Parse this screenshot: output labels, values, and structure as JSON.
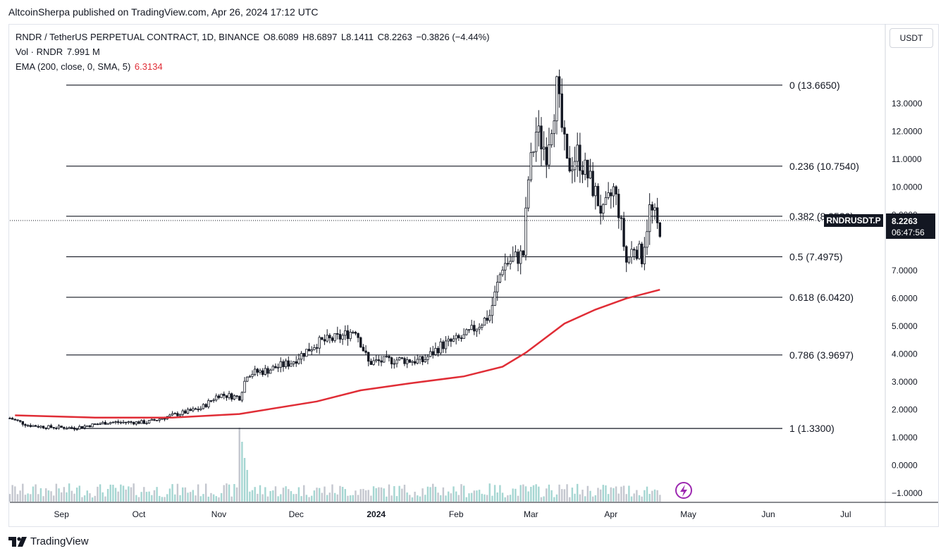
{
  "header": {
    "publisher": "AltcoinSherpa published on TradingView.com, Apr 26, 2024 17:12 UTC"
  },
  "legend": {
    "symbol": "RNDR / TetherUS PERPETUAL CONTRACT, 1D, BINANCE",
    "open": "O8.6089",
    "high": "H8.6897",
    "low": "L8.1411",
    "close": "C8.2263",
    "change": "−0.3826 (−4.44%)",
    "vol_label": "Vol · RNDR",
    "vol_value": "7.991 M",
    "ema_label": "EMA (200, close, 0, SMA, 5)",
    "ema_value": "6.3134"
  },
  "currency_button": "USDT",
  "branding": "TradingView",
  "colors": {
    "up": "#26a69a",
    "down": "#131722",
    "ema": "#e02d36",
    "fib": "#131722",
    "price_tag": "#131722"
  },
  "chart_data": {
    "type": "candlestick",
    "symbol": "RNDRUSDT.P",
    "last_price": "8.2263",
    "countdown": "06:47:56",
    "y_ticks": [
      "13.0000",
      "12.0000",
      "11.0000",
      "10.0000",
      "9.0000",
      "7.0000",
      "6.0000",
      "5.0000",
      "4.0000",
      "3.0000",
      "2.0000",
      "1.0000",
      "0.0000",
      "−1.0000"
    ],
    "x_ticks": [
      "Sep",
      "Oct",
      "Nov",
      "Dec",
      "2024",
      "Feb",
      "Mar",
      "Apr",
      "May",
      "Jun",
      "Jul"
    ],
    "ylim": [
      -1.3,
      14.9
    ],
    "fib_levels": [
      {
        "label": "0 (13.6650)",
        "value": 13.665
      },
      {
        "label": "0.236 (10.7540)",
        "value": 10.754
      },
      {
        "label": "0.382 (8.9530)",
        "value": 8.953
      },
      {
        "label": "0.5 (7.4975)",
        "value": 7.4975
      },
      {
        "label": "0.618 (6.0420)",
        "value": 6.042
      },
      {
        "label": "0.786 (3.9697)",
        "value": 3.9697
      },
      {
        "label": "1 (1.3300)",
        "value": 1.33
      }
    ],
    "price_path": [
      {
        "date": "2023-08-18",
        "close": 1.7
      },
      {
        "date": "2023-08-25",
        "close": 1.45
      },
      {
        "date": "2023-09-01",
        "close": 1.38
      },
      {
        "date": "2023-09-12",
        "close": 1.35
      },
      {
        "date": "2023-09-25",
        "close": 1.55
      },
      {
        "date": "2023-10-10",
        "close": 1.55
      },
      {
        "date": "2023-10-20",
        "close": 1.8
      },
      {
        "date": "2023-10-31",
        "close": 2.05
      },
      {
        "date": "2023-11-07",
        "close": 2.55
      },
      {
        "date": "2023-11-15",
        "close": 2.45
      },
      {
        "date": "2023-11-18",
        "close": 3.3
      },
      {
        "date": "2023-11-25",
        "close": 3.4
      },
      {
        "date": "2023-12-05",
        "close": 3.7
      },
      {
        "date": "2023-12-15",
        "close": 4.4
      },
      {
        "date": "2023-12-24",
        "close": 4.6
      },
      {
        "date": "2023-12-30",
        "close": 4.9
      },
      {
        "date": "2024-01-04",
        "close": 3.7
      },
      {
        "date": "2024-01-15",
        "close": 3.8
      },
      {
        "date": "2024-01-25",
        "close": 3.75
      },
      {
        "date": "2024-02-01",
        "close": 4.3
      },
      {
        "date": "2024-02-10",
        "close": 4.6
      },
      {
        "date": "2024-02-20",
        "close": 5.4
      },
      {
        "date": "2024-02-25",
        "close": 7.2
      },
      {
        "date": "2024-03-04",
        "close": 7.6
      },
      {
        "date": "2024-03-06",
        "close": 10.3
      },
      {
        "date": "2024-03-09",
        "close": 12.0
      },
      {
        "date": "2024-03-13",
        "close": 11.3
      },
      {
        "date": "2024-03-17",
        "close": 13.5
      },
      {
        "date": "2024-03-21",
        "close": 10.7
      },
      {
        "date": "2024-03-25",
        "close": 11.2
      },
      {
        "date": "2024-03-31",
        "close": 10.0
      },
      {
        "date": "2024-04-04",
        "close": 9.0
      },
      {
        "date": "2024-04-08",
        "close": 9.9
      },
      {
        "date": "2024-04-10",
        "close": 9.2
      },
      {
        "date": "2024-04-13",
        "close": 7.3
      },
      {
        "date": "2024-04-16",
        "close": 7.9
      },
      {
        "date": "2024-04-19",
        "close": 7.5
      },
      {
        "date": "2024-04-22",
        "close": 9.2
      },
      {
        "date": "2024-04-24",
        "close": 8.9
      },
      {
        "date": "2024-04-26",
        "close": 8.2263
      }
    ],
    "ema_path": [
      {
        "date": "2023-08-20",
        "value": 1.8
      },
      {
        "date": "2023-09-20",
        "value": 1.72
      },
      {
        "date": "2023-10-20",
        "value": 1.72
      },
      {
        "date": "2023-11-15",
        "value": 1.85
      },
      {
        "date": "2023-12-15",
        "value": 2.3
      },
      {
        "date": "2024-01-01",
        "value": 2.7
      },
      {
        "date": "2024-01-20",
        "value": 2.95
      },
      {
        "date": "2024-02-10",
        "value": 3.2
      },
      {
        "date": "2024-02-25",
        "value": 3.55
      },
      {
        "date": "2024-03-05",
        "value": 4.05
      },
      {
        "date": "2024-03-20",
        "value": 5.1
      },
      {
        "date": "2024-04-01",
        "value": 5.6
      },
      {
        "date": "2024-04-13",
        "value": 6.0
      },
      {
        "date": "2024-04-26",
        "value": 6.3134
      }
    ],
    "volume_spike_date": "2023-11-15"
  }
}
